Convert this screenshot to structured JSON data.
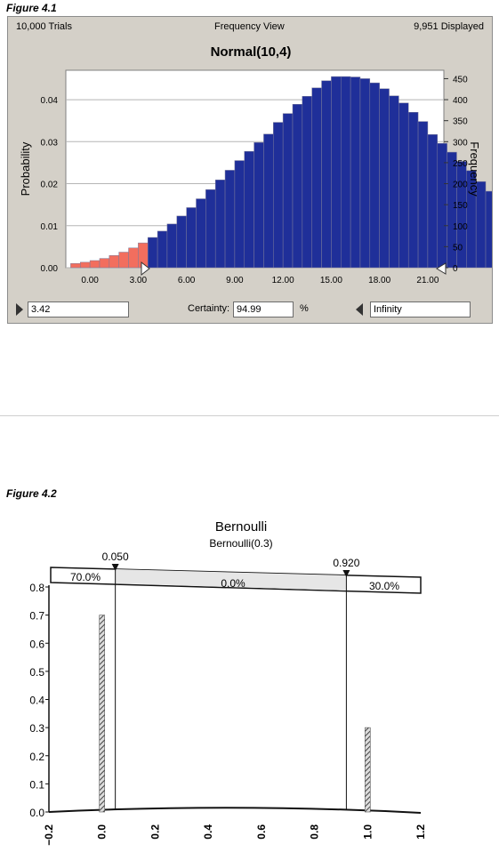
{
  "figure1": {
    "label": "Figure 4.1",
    "trials": "10,000 Trials",
    "view": "Frequency View",
    "displayed": "9,951 Displayed",
    "left_value": "3.42",
    "certainty_label": "Certainty:",
    "certainty_value": "94.99",
    "percent_sign": "%",
    "right_value": "Infinity",
    "colors": {
      "selected": "#1f2f99",
      "excluded": "#f26e5e",
      "plot_bg": "#ffffff",
      "panel_bg": "#d4d0c8"
    }
  },
  "figure2": {
    "label": "Figure 4.2",
    "colors": {
      "bar": "#555555"
    }
  },
  "chart_data": [
    {
      "type": "bar",
      "title": "Normal(10,4)",
      "xlabel": "",
      "ylabel": "Probability",
      "y2label": "Frequency",
      "x_ticks": [
        "0.00",
        "3.00",
        "6.00",
        "9.00",
        "12.00",
        "15.00",
        "18.00",
        "21.00"
      ],
      "y_ticks": [
        "0.00",
        "0.01",
        "0.02",
        "0.03",
        "0.04"
      ],
      "y2_ticks": [
        "0",
        "50",
        "100",
        "150",
        "200",
        "250",
        "300",
        "350",
        "400",
        "450"
      ],
      "xlim": [
        -1.5,
        22
      ],
      "ylim": [
        0,
        0.047
      ],
      "bin_width": 0.6,
      "bin_start": -1.2,
      "values": [
        0.001,
        0.0013,
        0.0017,
        0.0022,
        0.0029,
        0.0037,
        0.0047,
        0.0059,
        0.0072,
        0.0087,
        0.0104,
        0.0123,
        0.0143,
        0.0164,
        0.0186,
        0.0209,
        0.0232,
        0.0255,
        0.0277,
        0.0298,
        0.0318,
        0.0346,
        0.0367,
        0.0389,
        0.0408,
        0.0428,
        0.0445,
        0.0455,
        0.0455,
        0.0454,
        0.045,
        0.044,
        0.0426,
        0.0409,
        0.0392,
        0.037,
        0.0348,
        0.0317,
        0.0296,
        0.0275,
        0.0253,
        0.0231,
        0.0205,
        0.0182,
        0.016,
        0.0138,
        0.0119,
        0.0103,
        0.0087,
        0.0073,
        0.0062,
        0.0051,
        0.0041,
        0.0031,
        0.0024,
        0.0016,
        0.0011,
        0.0007
      ],
      "selection": [
        3.42,
        null
      ],
      "grid": true,
      "legend": "none"
    },
    {
      "type": "bar",
      "title": "Bernoulli",
      "subtitle": "Bernoulli(0.3)",
      "xlabel": "",
      "ylabel": "",
      "x": [
        0,
        1
      ],
      "values": [
        0.7,
        0.3
      ],
      "x_ticks": [
        "−0.2",
        "0.0",
        "0.2",
        "0.4",
        "0.6",
        "0.8",
        "1.0",
        "1.2"
      ],
      "y_ticks": [
        "0.0",
        "0.1",
        "0.2",
        "0.3",
        "0.4",
        "0.5",
        "0.6",
        "0.7",
        "0.8"
      ],
      "xlim": [
        -0.2,
        1.2
      ],
      "ylim": [
        0,
        0.8
      ],
      "markers": [
        {
          "label": "0.050",
          "x": 0.05
        },
        {
          "label": "0.920",
          "x": 0.92
        }
      ],
      "band_labels": [
        "70.0%",
        "0.0%",
        "30.0%"
      ],
      "legend": "none"
    }
  ]
}
